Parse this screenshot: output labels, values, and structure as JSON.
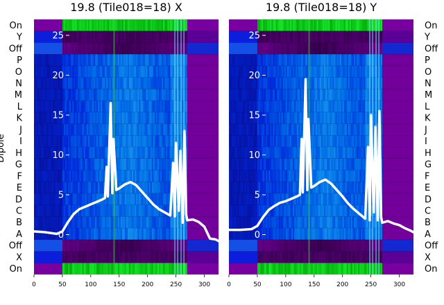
{
  "chart_data": [
    {
      "type": "heatmap",
      "title": "19.8 (Tile018=18) X",
      "ylabel": "Dipole",
      "rows_top_to_bottom": [
        "On",
        "Y",
        "Off",
        "P",
        "O",
        "N",
        "M",
        "L",
        "K",
        "J",
        "I",
        "H",
        "G",
        "F",
        "E",
        "D",
        "C",
        "B",
        "A",
        "Off",
        "X",
        "On"
      ],
      "x_ticks": [
        0,
        50,
        100,
        150,
        200,
        250,
        300
      ],
      "xlim": [
        0,
        325
      ],
      "overlay_y_ticks": [
        25,
        20,
        15,
        10,
        5,
        0
      ],
      "overlay_ylim": [
        -5,
        27
      ],
      "overlay": {
        "x": [
          0,
          20,
          40,
          50,
          60,
          70,
          80,
          90,
          100,
          110,
          120,
          125,
          128,
          130,
          135,
          138,
          140,
          145,
          150,
          160,
          170,
          180,
          190,
          200,
          210,
          220,
          230,
          240,
          245,
          248,
          250,
          255,
          258,
          262,
          265,
          268,
          270,
          280,
          290,
          300,
          310,
          320,
          325
        ],
        "y": [
          0.4,
          0.3,
          0.1,
          0.4,
          1.6,
          2.6,
          3.2,
          3.5,
          3.8,
          4.1,
          4.4,
          4.6,
          8.5,
          4.8,
          16.5,
          5.2,
          12.0,
          5.6,
          5.8,
          6.3,
          6.6,
          6.2,
          5.4,
          4.6,
          3.8,
          3.2,
          2.8,
          2.4,
          9.0,
          2.3,
          11.5,
          3.0,
          10.5,
          1.5,
          13.0,
          2.5,
          1.8,
          1.9,
          1.6,
          1.0,
          -0.5,
          -0.6,
          -0.8
        ]
      }
    },
    {
      "type": "heatmap",
      "title": "19.8 (Tile018=18) Y",
      "ylabel": "",
      "rows_top_to_bottom": [
        "On",
        "Y",
        "Off",
        "P",
        "O",
        "N",
        "M",
        "L",
        "K",
        "J",
        "I",
        "H",
        "G",
        "F",
        "E",
        "D",
        "C",
        "B",
        "A",
        "Off",
        "X",
        "On"
      ],
      "x_ticks": [
        0,
        50,
        100,
        150,
        200,
        250,
        300
      ],
      "xlim": [
        0,
        325
      ],
      "overlay_y_ticks": [
        25,
        20,
        15,
        10,
        5,
        0
      ],
      "overlay_ylim": [
        -5,
        27
      ],
      "overlay": {
        "x": [
          0,
          20,
          40,
          50,
          60,
          70,
          80,
          90,
          100,
          110,
          120,
          125,
          128,
          130,
          135,
          138,
          140,
          145,
          150,
          160,
          170,
          180,
          190,
          200,
          210,
          220,
          230,
          240,
          245,
          248,
          250,
          255,
          258,
          262,
          265,
          268,
          270,
          280,
          290,
          300,
          310,
          320,
          325
        ],
        "y": [
          0.6,
          0.6,
          0.7,
          1.1,
          2.2,
          3.1,
          3.6,
          4.0,
          4.2,
          4.5,
          4.8,
          5.0,
          12.0,
          5.3,
          19.5,
          5.6,
          14.5,
          5.9,
          6.1,
          6.6,
          6.9,
          6.4,
          5.6,
          4.8,
          3.9,
          3.2,
          2.6,
          2.0,
          11.0,
          1.8,
          15.0,
          2.8,
          13.5,
          1.8,
          15.5,
          2.2,
          1.5,
          1.7,
          1.4,
          1.2,
          0.8,
          0.5,
          0.3
        ]
      }
    }
  ]
}
